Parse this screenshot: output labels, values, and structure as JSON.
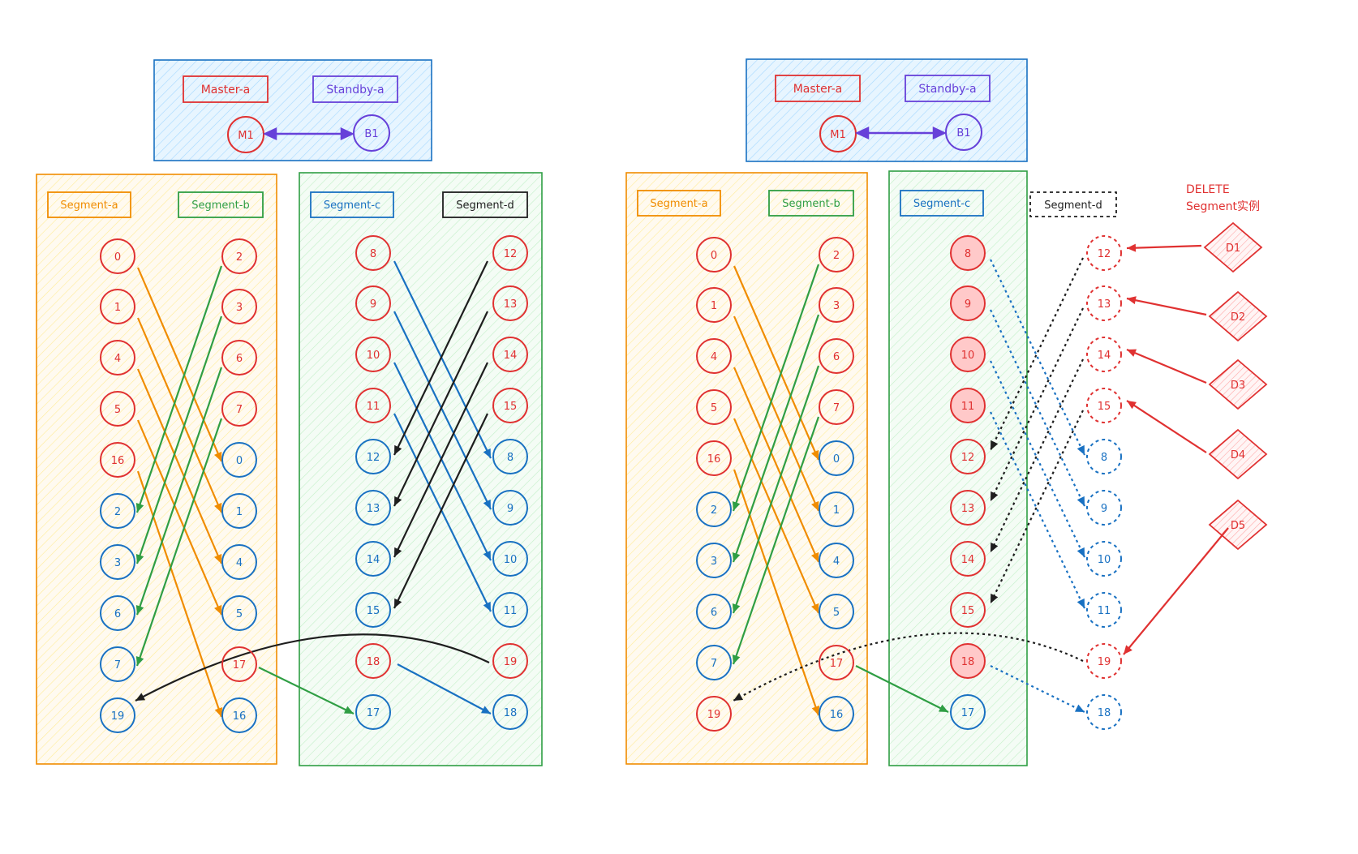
{
  "colors": {
    "red": "#e03131",
    "blue": "#1971c2",
    "green": "#2f9e44",
    "orange": "#f08c00",
    "purple": "#6741d9",
    "black": "#1e1e1e",
    "master_fill": "#d0ebff",
    "seg_ab_fill": "#fff3bf",
    "seg_cd_fill": "#d3f9d8",
    "deleted_fill": "#ffc9c9"
  },
  "left": {
    "header": {
      "master_label": "Master-a",
      "standby_label": "Standby-a",
      "m_node": "M1",
      "b_node": "B1"
    },
    "segment_labels": {
      "a": "Segment-a",
      "b": "Segment-b",
      "c": "Segment-c",
      "d": "Segment-d"
    },
    "columns": {
      "a": [
        {
          "label": "0",
          "role": "primary"
        },
        {
          "label": "1",
          "role": "primary"
        },
        {
          "label": "4",
          "role": "primary"
        },
        {
          "label": "5",
          "role": "primary"
        },
        {
          "label": "16",
          "role": "primary"
        },
        {
          "label": "2",
          "role": "mirror"
        },
        {
          "label": "3",
          "role": "mirror"
        },
        {
          "label": "6",
          "role": "mirror"
        },
        {
          "label": "7",
          "role": "mirror"
        },
        {
          "label": "19",
          "role": "mirror"
        }
      ],
      "b": [
        {
          "label": "2",
          "role": "primary"
        },
        {
          "label": "3",
          "role": "primary"
        },
        {
          "label": "6",
          "role": "primary"
        },
        {
          "label": "7",
          "role": "primary"
        },
        {
          "label": "0",
          "role": "mirror"
        },
        {
          "label": "1",
          "role": "mirror"
        },
        {
          "label": "4",
          "role": "mirror"
        },
        {
          "label": "5",
          "role": "mirror"
        },
        {
          "label": "17",
          "role": "primary"
        },
        {
          "label": "16",
          "role": "mirror"
        }
      ],
      "c": [
        {
          "label": "8",
          "role": "primary"
        },
        {
          "label": "9",
          "role": "primary"
        },
        {
          "label": "10",
          "role": "primary"
        },
        {
          "label": "11",
          "role": "primary"
        },
        {
          "label": "12",
          "role": "mirror"
        },
        {
          "label": "13",
          "role": "mirror"
        },
        {
          "label": "14",
          "role": "mirror"
        },
        {
          "label": "15",
          "role": "mirror"
        },
        {
          "label": "18",
          "role": "primary"
        },
        {
          "label": "17",
          "role": "mirror"
        }
      ],
      "d": [
        {
          "label": "12",
          "role": "primary"
        },
        {
          "label": "13",
          "role": "primary"
        },
        {
          "label": "14",
          "role": "primary"
        },
        {
          "label": "15",
          "role": "primary"
        },
        {
          "label": "8",
          "role": "mirror"
        },
        {
          "label": "9",
          "role": "mirror"
        },
        {
          "label": "10",
          "role": "mirror"
        },
        {
          "label": "11",
          "role": "mirror"
        },
        {
          "label": "19",
          "role": "primary"
        },
        {
          "label": "18",
          "role": "mirror"
        }
      ]
    }
  },
  "right": {
    "header": {
      "master_label": "Master-a",
      "standby_label": "Standby-a",
      "m_node": "M1",
      "b_node": "B1"
    },
    "segment_labels": {
      "a": "Segment-a",
      "b": "Segment-b",
      "c": "Segment-c",
      "d": "Segment-d"
    },
    "delete_note": [
      "DELETE",
      "Segment实例"
    ],
    "columns": {
      "a": [
        {
          "label": "0",
          "role": "primary"
        },
        {
          "label": "1",
          "role": "primary"
        },
        {
          "label": "4",
          "role": "primary"
        },
        {
          "label": "5",
          "role": "primary"
        },
        {
          "label": "16",
          "role": "primary"
        },
        {
          "label": "2",
          "role": "mirror"
        },
        {
          "label": "3",
          "role": "mirror"
        },
        {
          "label": "6",
          "role": "mirror"
        },
        {
          "label": "7",
          "role": "mirror"
        },
        {
          "label": "19",
          "role": "primary"
        }
      ],
      "b": [
        {
          "label": "2",
          "role": "primary"
        },
        {
          "label": "3",
          "role": "primary"
        },
        {
          "label": "6",
          "role": "primary"
        },
        {
          "label": "7",
          "role": "primary"
        },
        {
          "label": "0",
          "role": "mirror"
        },
        {
          "label": "1",
          "role": "mirror"
        },
        {
          "label": "4",
          "role": "mirror"
        },
        {
          "label": "5",
          "role": "mirror"
        },
        {
          "label": "17",
          "role": "primary"
        },
        {
          "label": "16",
          "role": "mirror"
        }
      ],
      "c": [
        {
          "label": "8",
          "role": "promoted"
        },
        {
          "label": "9",
          "role": "promoted"
        },
        {
          "label": "10",
          "role": "promoted"
        },
        {
          "label": "11",
          "role": "promoted"
        },
        {
          "label": "12",
          "role": "primary"
        },
        {
          "label": "13",
          "role": "primary"
        },
        {
          "label": "14",
          "role": "primary"
        },
        {
          "label": "15",
          "role": "primary"
        },
        {
          "label": "18",
          "role": "promoted"
        },
        {
          "label": "17",
          "role": "mirror"
        }
      ],
      "d": [
        {
          "label": "12",
          "role": "deleted-primary"
        },
        {
          "label": "13",
          "role": "deleted-primary"
        },
        {
          "label": "14",
          "role": "deleted-primary"
        },
        {
          "label": "15",
          "role": "deleted-primary"
        },
        {
          "label": "8",
          "role": "deleted-mirror"
        },
        {
          "label": "9",
          "role": "deleted-mirror"
        },
        {
          "label": "10",
          "role": "deleted-mirror"
        },
        {
          "label": "11",
          "role": "deleted-mirror"
        },
        {
          "label": "19",
          "role": "deleted-primary"
        },
        {
          "label": "18",
          "role": "deleted-mirror"
        }
      ]
    },
    "diamonds": [
      "D1",
      "D2",
      "D3",
      "D4",
      "D5"
    ]
  }
}
